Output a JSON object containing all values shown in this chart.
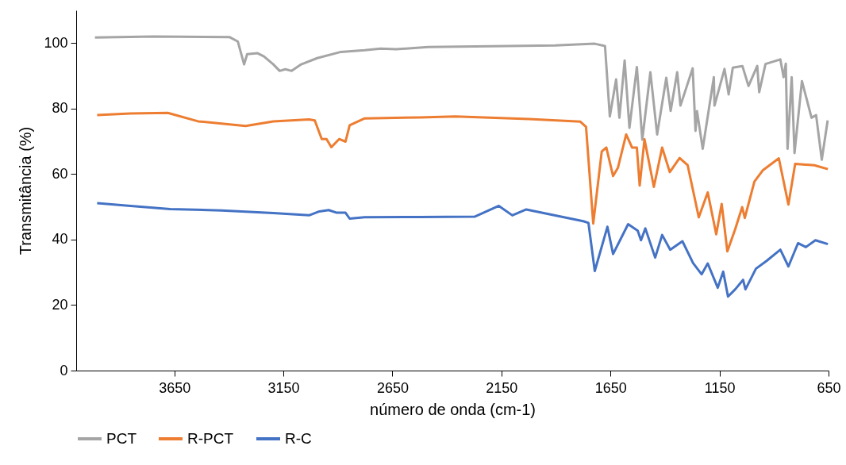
{
  "chart_data": {
    "type": "line",
    "xlabel": "número de onda (cm-1)",
    "ylabel": "Transmitância (%)",
    "xlim": [
      4100,
      650
    ],
    "xticks": [
      3650,
      3150,
      2650,
      2150,
      1650,
      1150,
      650
    ],
    "ylim": [
      0,
      110
    ],
    "yticks": [
      0,
      20,
      40,
      60,
      80,
      100
    ],
    "grid": false,
    "legend": "bottom",
    "marker": "none",
    "line_style": "solid",
    "series": [
      {
        "name": "PCT",
        "color": "#a5a5a5",
        "x": [
          4014,
          3745,
          3396,
          3359,
          3330,
          3316,
          3268,
          3239,
          3196,
          3167,
          3141,
          3112,
          3068,
          2995,
          2886,
          2777,
          2704,
          2632,
          2486,
          2268,
          1904,
          1722,
          1675,
          1653,
          1624,
          1609,
          1585,
          1563,
          1529,
          1504,
          1467,
          1436,
          1394,
          1374,
          1344,
          1329,
          1273,
          1260,
          1253,
          1227,
          1176,
          1173,
          1127,
          1108,
          1089,
          1045,
          1017,
          977,
          968,
          939,
          871,
          856,
          846,
          838,
          819,
          806,
          772,
          728,
          707,
          681,
          654
        ],
        "values": [
          101.7,
          102,
          101.8,
          100.5,
          93.5,
          96.6,
          96.9,
          95.9,
          93.5,
          91.5,
          92,
          91.5,
          93.5,
          95.4,
          97.3,
          97.8,
          98.3,
          98.1,
          98.8,
          99,
          99.3,
          99.8,
          99.1,
          77.6,
          88.9,
          77.2,
          94.7,
          74.1,
          92.7,
          70.5,
          91.1,
          72.1,
          89.4,
          79.3,
          91.1,
          80.9,
          92.3,
          73.2,
          79.2,
          67.7,
          89.6,
          80.9,
          92.1,
          84.3,
          92.5,
          93,
          86.9,
          93,
          85,
          93.6,
          95,
          89.6,
          93.7,
          67.7,
          89.6,
          66.4,
          88.4,
          77.2,
          78,
          64.4,
          76.4
        ]
      },
      {
        "name": "R-PCT",
        "color": "#ed7d31",
        "x": [
          4004,
          3851,
          3680,
          3541,
          3323,
          3196,
          3032,
          3006,
          2974,
          2952,
          2930,
          2894,
          2865,
          2846,
          2777,
          2523,
          2361,
          2024,
          1788,
          1762,
          1729,
          1690,
          1669,
          1638,
          1616,
          1578,
          1551,
          1529,
          1516,
          1494,
          1451,
          1413,
          1378,
          1333,
          1296,
          1245,
          1204,
          1165,
          1140,
          1114,
          1078,
          1046,
          1034,
          990,
          952,
          878,
          834,
          803,
          715,
          653
        ],
        "values": [
          78,
          78.5,
          78.7,
          76.1,
          74.7,
          76.1,
          76.7,
          76.4,
          70.7,
          70.7,
          68.2,
          70.7,
          69.9,
          74.9,
          77,
          77.3,
          77.6,
          76.8,
          76,
          74.4,
          44.9,
          66.9,
          68.1,
          59.4,
          61.9,
          72.1,
          68.1,
          68.1,
          56.5,
          70.6,
          56.1,
          68.1,
          60.6,
          64.9,
          62.7,
          46.8,
          54.4,
          41.6,
          50.9,
          36.4,
          43.2,
          49.9,
          46.6,
          57.7,
          61.1,
          64.8,
          50.7,
          63.1,
          62.7,
          61.5
        ]
      },
      {
        "name": "R-C",
        "color": "#4472c4",
        "x": [
          4004,
          3851,
          3669,
          3432,
          3196,
          3032,
          2985,
          2942,
          2905,
          2865,
          2846,
          2777,
          2523,
          2273,
          2162,
          2100,
          2036,
          1775,
          1751,
          1722,
          1664,
          1638,
          1569,
          1525,
          1510,
          1490,
          1445,
          1413,
          1376,
          1320,
          1271,
          1232,
          1204,
          1158,
          1133,
          1111,
          1078,
          1042,
          1031,
          983,
          934,
          871,
          834,
          790,
          754,
          710,
          653
        ],
        "values": [
          51.1,
          50.3,
          49.3,
          48.9,
          48.1,
          47.4,
          48.6,
          49,
          48.2,
          48.2,
          46.4,
          46.8,
          46.9,
          47,
          50.3,
          47.4,
          49.2,
          45.6,
          45.1,
          30.4,
          43.9,
          35.6,
          44.7,
          42.7,
          39.8,
          43.4,
          34.5,
          41.4,
          36.9,
          39.5,
          32.8,
          29.4,
          32.7,
          25.3,
          30.2,
          22.6,
          24.8,
          27.7,
          24.8,
          31.1,
          33.5,
          36.9,
          31.8,
          38.9,
          37.7,
          39.8,
          38.6
        ]
      }
    ]
  }
}
